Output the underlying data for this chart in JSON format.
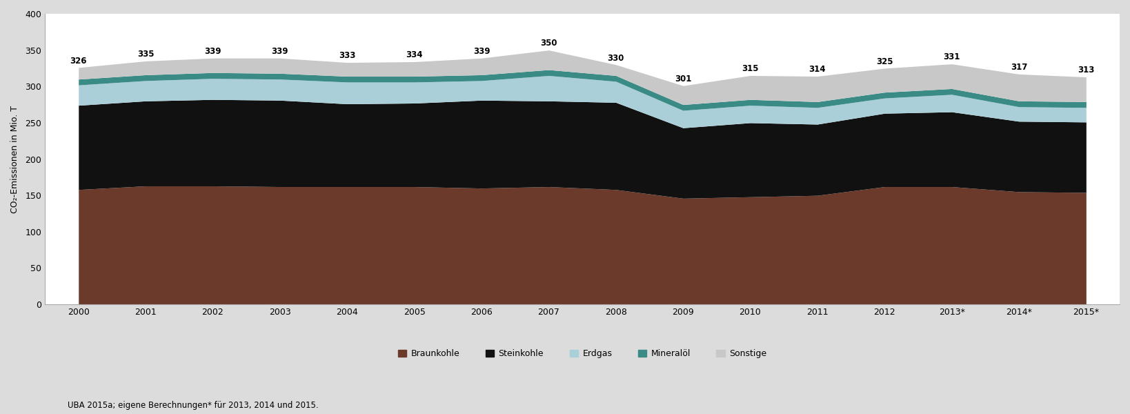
{
  "years": [
    2000,
    2001,
    2002,
    2003,
    2004,
    2005,
    2006,
    2007,
    2008,
    2009,
    2010,
    2011,
    2012,
    2013,
    2014,
    2015
  ],
  "year_labels": [
    "2000",
    "2001",
    "2002",
    "2003",
    "2004",
    "2005",
    "2006",
    "2007",
    "2008",
    "2009",
    "2010",
    "2011",
    "2012",
    "2013*",
    "2014*",
    "2015*"
  ],
  "totals": [
    326,
    335,
    339,
    339,
    333,
    334,
    339,
    350,
    330,
    301,
    315,
    314,
    325,
    331,
    317,
    313
  ],
  "braunkohle": [
    158,
    163,
    163,
    162,
    162,
    162,
    160,
    162,
    158,
    146,
    148,
    150,
    162,
    162,
    155,
    154
  ],
  "steinkohle": [
    116,
    117,
    119,
    119,
    114,
    115,
    121,
    118,
    120,
    97,
    102,
    98,
    101,
    103,
    97,
    97
  ],
  "erdgas": [
    28,
    28,
    29,
    29,
    30,
    29,
    27,
    35,
    29,
    24,
    24,
    23,
    21,
    24,
    20,
    20
  ],
  "mineraloil": [
    8,
    8,
    8,
    8,
    8,
    8,
    8,
    8,
    8,
    8,
    8,
    8,
    8,
    8,
    8,
    8
  ],
  "sonstige": [
    16,
    19,
    20,
    21,
    19,
    20,
    23,
    27,
    15,
    26,
    33,
    35,
    33,
    34,
    37,
    34
  ],
  "color_braunkohle": "#6B3A2A",
  "color_steinkohle": "#111111",
  "color_erdgas": "#AACFD8",
  "color_mineraloil": "#3A8A85",
  "color_sonstige": "#C8C8C8",
  "ylabel": "CO₂-Emissionen in Mio. T",
  "ylim": [
    0,
    400
  ],
  "yticks": [
    0,
    50,
    100,
    150,
    200,
    250,
    300,
    350,
    400
  ],
  "bg_color": "#DCDCDC",
  "plot_bg_color": "#FFFFFF",
  "legend_labels": [
    "Braunkohle",
    "Steinkohle",
    "Erdgas",
    "Mineralöl",
    "Sonstige"
  ],
  "footnote": "UBA 2015a; eigene Berechnungen* für 2013, 2014 und 2015."
}
